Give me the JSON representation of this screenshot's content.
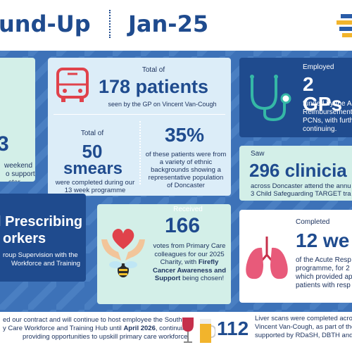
{
  "header": {
    "title": "und-Up",
    "date": "Jan-25"
  },
  "weekend_card": {
    "number": "3",
    "lines": [
      "weekend",
      "o support",
      "ster"
    ]
  },
  "patients_card": {
    "pre": "Total of",
    "headline": "178 patients",
    "caption": "seen by the GP on Vincent Van-Cough",
    "smears": {
      "pre": "Total of",
      "number": "50",
      "unit": "smears",
      "caption": "were completed during our 13 week programme"
    },
    "ethnic": {
      "headline": "35%",
      "caption": "of these patients were from a variety of ethnic backgrounds showing a representative population of Doncaster"
    }
  },
  "gps_card": {
    "pre": "Employed",
    "headline": "2 GPs",
    "lines": [
      "funded by the Ac",
      "Reimbursement",
      "PCNs, with furth",
      "continuing."
    ]
  },
  "clinicians_card": {
    "pre": "Saw",
    "headline": "296 clinicia",
    "lines": [
      "across Doncaster attend the annu",
      "3 Child Safeguarding TARGET tra"
    ]
  },
  "prescribing_card": {
    "headline": [
      "l Prescribing",
      "orkers"
    ],
    "lines": [
      "roup Supervision with the",
      "Workforce and Training"
    ]
  },
  "votes_card": {
    "pre": "Received",
    "number": "166",
    "caption": "votes from Primary Care colleagues for our 2025 Charity, with ",
    "bold": "Firefly Cancer Awareness and Support",
    "post": " being chosen!"
  },
  "weeks_card": {
    "pre": "Completed",
    "headline": "12 we",
    "lines": [
      "of the Acute Resp",
      "programme, for 2",
      "which provided ap",
      "patients with resp"
    ]
  },
  "contract_bar": {
    "line1": "ed our contract and will continue to host employee the South",
    "line2_pre": "y Care Workforce and Training Hub until ",
    "line2_bold": "April 2026",
    "line2_post": ", continuing",
    "line3": "providing opportunities to upskill primary care workforce."
  },
  "liver_bar": {
    "number": "112",
    "lines": [
      "Liver scans were completed acros",
      "Vincent Van-Cough, as part of the",
      "supported by RDaSH, DBTH and Pu"
    ]
  }
}
